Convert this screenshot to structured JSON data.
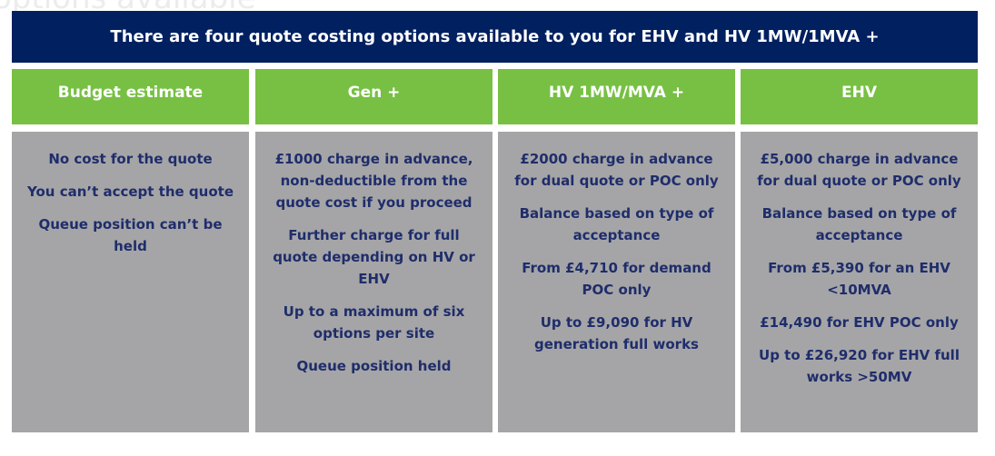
{
  "background_text": "options available",
  "title": "There are four quote costing options available to you for EHV and HV 1MW/1MVA +",
  "colors": {
    "banner": "#002060",
    "header": "#77C043",
    "panel": "#A5A5A7",
    "text": "#1F2D6B"
  },
  "columns": [
    {
      "heading": "Budget estimate",
      "items": [
        "No cost for the quote",
        "You can’t accept the quote",
        "Queue position can’t be held"
      ]
    },
    {
      "heading": "Gen +",
      "items": [
        "£1000 charge in advance, non-deductible from the quote cost if you proceed",
        "Further charge for full quote depending on HV or EHV",
        "Up to a maximum of six options per site",
        "Queue position held"
      ]
    },
    {
      "heading": "HV 1MW/MVA +",
      "items": [
        "£2000 charge in advance for dual quote or POC only",
        "Balance based on type of acceptance",
        "From £4,710 for demand POC only",
        "Up to £9,090 for HV generation full works"
      ]
    },
    {
      "heading": "EHV",
      "items": [
        "£5,000 charge in advance for dual quote or POC only",
        "Balance based on type of acceptance",
        "From £5,390 for an EHV <10MVA",
        "£14,490 for EHV POC only",
        "Up to £26,920 for EHV full works >50MV"
      ]
    }
  ]
}
